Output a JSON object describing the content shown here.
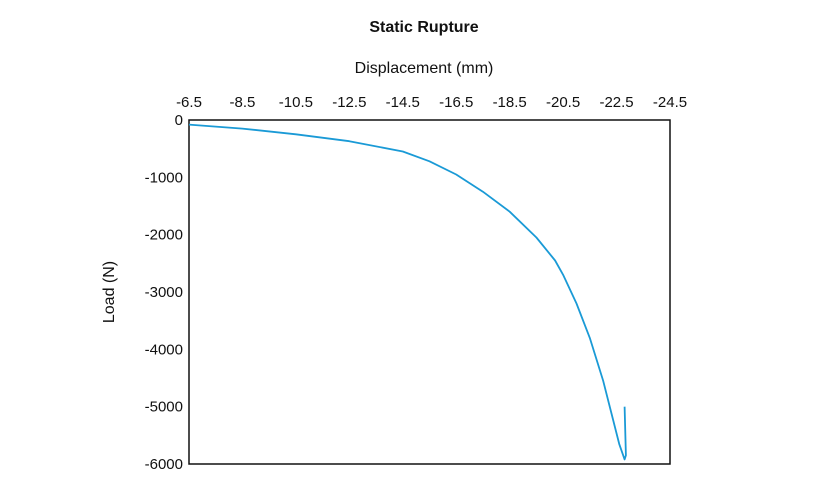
{
  "chart_data": {
    "type": "line",
    "title": "Static Rupture",
    "xlabel": "Displacement (mm)",
    "ylabel": "Load (N)",
    "x_axis_position": "top",
    "x_reversed": true,
    "xlim": [
      -6.5,
      -24.5
    ],
    "ylim": [
      -6000,
      0
    ],
    "x_ticks": [
      -6.5,
      -8.5,
      -10.5,
      -12.5,
      -14.5,
      -16.5,
      -18.5,
      -20.5,
      -22.5,
      -24.5
    ],
    "x_tick_labels": [
      "-6.5",
      "-8.5",
      "-10.5",
      "-12.5",
      "-14.5",
      "-16.5",
      "-18.5",
      "-20.5",
      "-22.5",
      "-24.5"
    ],
    "y_ticks": [
      0,
      -1000,
      -2000,
      -3000,
      -4000,
      -5000,
      -6000
    ],
    "y_tick_labels": [
      "0",
      "-1000",
      "-2000",
      "-3000",
      "-4000",
      "-5000",
      "-6000"
    ],
    "grid": false,
    "series": [
      {
        "color": "#1a9ad6",
        "x": [
          -6.5,
          -8.5,
          -10.5,
          -12.5,
          -14.5,
          -15.5,
          -16.5,
          -17.5,
          -18.5,
          -19.5,
          -20.2,
          -20.5,
          -21.0,
          -21.5,
          -22.0,
          -22.3,
          -22.6,
          -22.8,
          -22.85,
          -22.8
        ],
        "y": [
          -80,
          -150,
          -250,
          -370,
          -550,
          -720,
          -950,
          -1250,
          -1600,
          -2050,
          -2450,
          -2700,
          -3200,
          -3800,
          -4550,
          -5100,
          -5650,
          -5920,
          -5850,
          -5000
        ]
      }
    ]
  }
}
